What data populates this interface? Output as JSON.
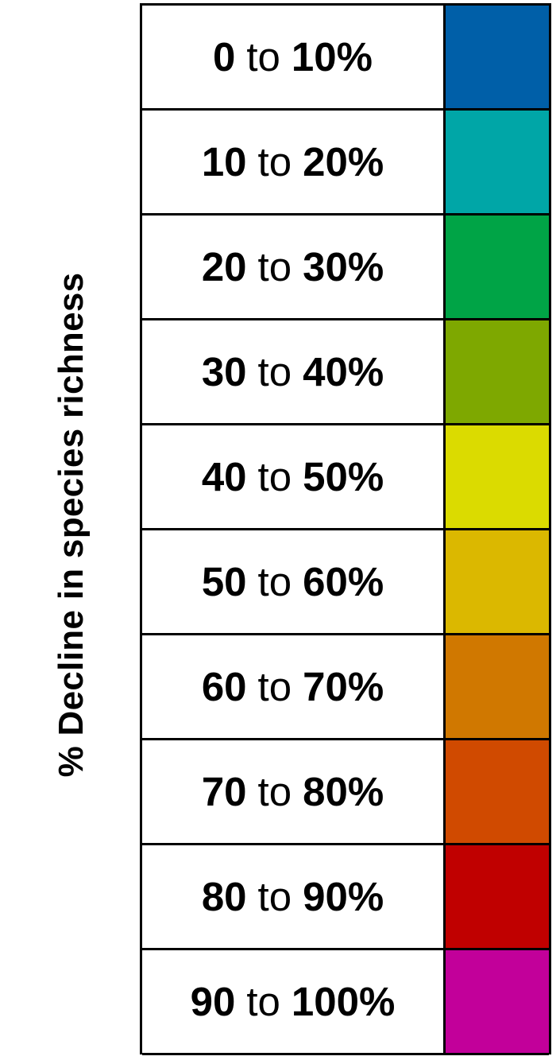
{
  "chart_data": {
    "type": "table",
    "ylabel": "% Decline in species richness",
    "connector": "to",
    "bins": [
      {
        "from": "0",
        "to": "10%",
        "color": "#005fa8"
      },
      {
        "from": "10",
        "to": "20%",
        "color": "#00a6a7"
      },
      {
        "from": "20",
        "to": "30%",
        "color": "#00a446"
      },
      {
        "from": "30",
        "to": "40%",
        "color": "#7ea800"
      },
      {
        "from": "40",
        "to": "50%",
        "color": "#dbdb00"
      },
      {
        "from": "50",
        "to": "60%",
        "color": "#dbb800"
      },
      {
        "from": "60",
        "to": "70%",
        "color": "#d07800"
      },
      {
        "from": "70",
        "to": "80%",
        "color": "#d04a00"
      },
      {
        "from": "80",
        "to": "90%",
        "color": "#c00000"
      },
      {
        "from": "90",
        "to": "100%",
        "color": "#c2009a"
      }
    ]
  }
}
